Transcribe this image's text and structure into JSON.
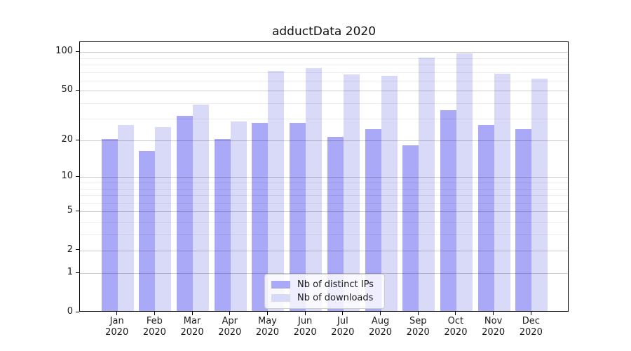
{
  "chart_data": {
    "type": "bar",
    "title": "adductData 2020",
    "categories": [
      "Jan",
      "Feb",
      "Mar",
      "Apr",
      "May",
      "Jun",
      "Jul",
      "Aug",
      "Sep",
      "Oct",
      "Nov",
      "Dec"
    ],
    "year_label": "2020",
    "series": [
      {
        "name": "Nb of distinct IPs",
        "color": "#a9a9f7",
        "values": [
          20,
          16,
          31,
          20,
          27,
          27,
          21,
          24,
          18,
          34,
          26,
          24
        ]
      },
      {
        "name": "Nb of downloads",
        "color": "#d9d9f8",
        "values": [
          26,
          25,
          38,
          28,
          70,
          73,
          65,
          64,
          88,
          95,
          66,
          61
        ]
      }
    ],
    "y_scale": "log10(1+x)",
    "y_major_ticks": [
      0,
      1,
      2,
      5,
      10,
      20,
      50,
      100
    ],
    "y_minor_ticks": [
      3,
      4,
      6,
      7,
      8,
      9,
      30,
      40,
      60,
      70,
      80,
      90
    ],
    "ylim": [
      0,
      120
    ],
    "xlabel": "",
    "ylabel": "",
    "legend": {
      "position": "lower center inside plot"
    },
    "grid": {
      "major_color": "#cccccc",
      "minor_color": "#ebebeb",
      "drawn_above_bars": true
    },
    "axis_color": "#000000",
    "background": "#ffffff"
  }
}
